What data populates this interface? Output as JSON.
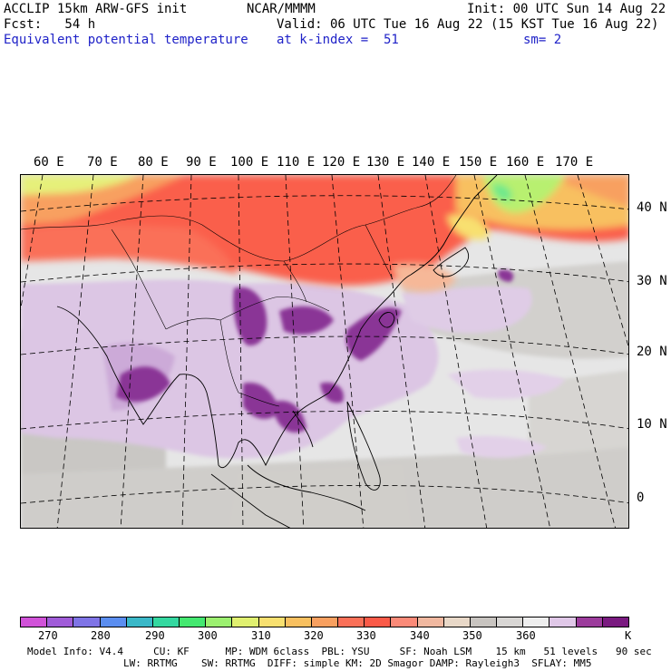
{
  "header": {
    "model": "ACCLIP 15km ARW-GFS init",
    "center": "NCAR/MMMM",
    "init": "Init: 00 UTC Sun 14 Aug 22",
    "fcst": "Fcst:   54 h",
    "valid": "Valid: 06 UTC Tue 16 Aug 22 (15 KST Tue 16 Aug 22)",
    "field": "Equivalent potential temperature",
    "level": "at k-index =  51",
    "smooth": "sm= 2"
  },
  "map": {
    "lon_labels": [
      "60 E",
      "70 E",
      "80 E",
      "90 E",
      "100 E",
      "110 E",
      "120 E",
      "130 E",
      "140 E",
      "150 E",
      "160 E",
      "170 E"
    ],
    "lat_labels": [
      "40 N",
      "30 N",
      "20 N",
      "10 N",
      "0"
    ]
  },
  "colorbar": {
    "colors": [
      "#d052d8",
      "#a05cd8",
      "#7f74e6",
      "#5b8ef0",
      "#3ab8c8",
      "#34d8a0",
      "#44e870",
      "#9cf070",
      "#e0f070",
      "#f8e070",
      "#f8c060",
      "#f8a060",
      "#fa7058",
      "#fa5a48",
      "#fa8a78",
      "#f0b8a0",
      "#e8d8c8",
      "#c8c4c0",
      "#d8d6d4",
      "#eeeeee",
      "#e0c8e8",
      "#9c3c9c",
      "#7a1a80"
    ],
    "ticks": [
      "270",
      "280",
      "290",
      "300",
      "310",
      "320",
      "330",
      "340",
      "350",
      "360"
    ],
    "unit": "K"
  },
  "info": {
    "line1": "Model Info: V4.4     CU: KF      MP: WDM 6class  PBL: YSU     SF: Noah LSM    15 km   51 levels   90 sec",
    "line2": "                LW: RRTMG    SW: RRTMG  DIFF: simple KM: 2D Smagor DAMP: Rayleigh3  SFLAY: MM5"
  }
}
